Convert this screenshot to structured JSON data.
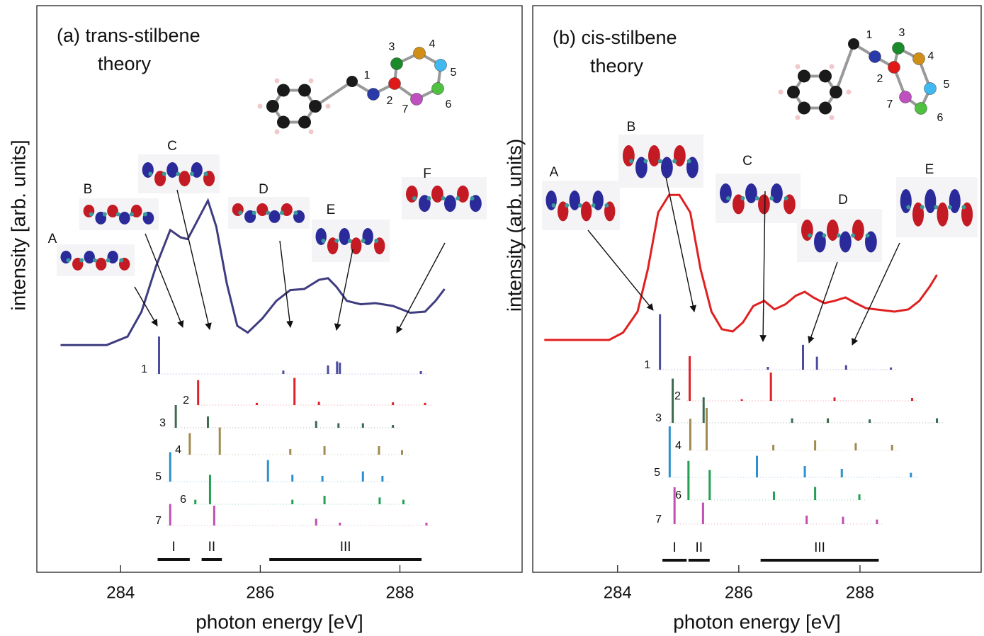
{
  "chart_data": [
    {
      "type": "spectrum",
      "title": "(a) trans-stilbene",
      "subtitle": "theory",
      "xlabel": "photon energy [eV]",
      "ylabel": "intensity [arb. units]",
      "xlim": [
        282.8,
        289.75
      ],
      "ylim": [
        0,
        1
      ],
      "xticks": [
        284,
        286,
        288
      ],
      "annotations": [
        "A",
        "B",
        "C",
        "D",
        "E",
        "F"
      ],
      "atom_labels": [
        "1",
        "2",
        "3",
        "4",
        "5",
        "6",
        "7"
      ],
      "regions": [
        {
          "label": "I",
          "range": [
            284.53,
            284.99
          ]
        },
        {
          "label": "II",
          "range": [
            285.16,
            285.45
          ]
        },
        {
          "label": "III",
          "range": [
            286.13,
            288.31
          ]
        }
      ],
      "curve": {
        "color": "#3f3c80",
        "x": [
          283.14,
          283.8,
          284.1,
          284.3,
          284.51,
          284.71,
          284.86,
          284.96,
          285.11,
          285.25,
          285.37,
          285.52,
          285.67,
          285.82,
          286.03,
          286.23,
          286.43,
          286.63,
          286.84,
          286.97,
          287.09,
          287.24,
          287.44,
          287.65,
          287.9,
          288.15,
          288.36,
          288.51,
          288.64
        ],
        "values": [
          0.401,
          0.401,
          0.416,
          0.46,
          0.541,
          0.604,
          0.591,
          0.588,
          0.623,
          0.656,
          0.61,
          0.51,
          0.435,
          0.423,
          0.448,
          0.479,
          0.498,
          0.5,
          0.516,
          0.519,
          0.504,
          0.479,
          0.473,
          0.475,
          0.47,
          0.458,
          0.46,
          0.479,
          0.5
        ]
      },
      "series": [
        {
          "name": "1",
          "color": "#4b4ba0",
          "x": [
            284.55,
            286.33,
            286.97,
            287.1,
            287.14,
            288.3
          ],
          "values": [
            0.066,
            0.006,
            0.015,
            0.022,
            0.02,
            0.005
          ]
        },
        {
          "name": "2",
          "color": "#e0202a",
          "x": [
            285.11,
            285.95,
            286.49,
            286.84,
            287.9,
            288.36
          ],
          "values": [
            0.044,
            0.004,
            0.048,
            0.006,
            0.005,
            0.004
          ]
        },
        {
          "name": "3",
          "color": "#3a6a50",
          "x": [
            284.79,
            285.25,
            286.8,
            287.12,
            287.47,
            287.9
          ],
          "values": [
            0.04,
            0.02,
            0.012,
            0.008,
            0.008,
            0.005
          ]
        },
        {
          "name": "4",
          "color": "#a08a50",
          "x": [
            284.99,
            285.42,
            286.43,
            286.92,
            287.7,
            288.03
          ],
          "values": [
            0.038,
            0.048,
            0.01,
            0.015,
            0.015,
            0.008
          ]
        },
        {
          "name": "5",
          "color": "#2a90d0",
          "x": [
            284.71,
            286.11,
            286.46,
            286.89,
            287.47,
            287.75
          ],
          "values": [
            0.052,
            0.038,
            0.012,
            0.01,
            0.018,
            0.01
          ]
        },
        {
          "name": "6",
          "color": "#20a050",
          "x": [
            285.07,
            285.28,
            286.46,
            286.92,
            287.71,
            288.05
          ],
          "values": [
            0.008,
            0.052,
            0.008,
            0.015,
            0.012,
            0.008
          ]
        },
        {
          "name": "7",
          "color": "#c050b0",
          "x": [
            284.71,
            285.34,
            286.8,
            287.14,
            288.38
          ],
          "values": [
            0.038,
            0.035,
            0.012,
            0.005,
            0.005
          ]
        }
      ]
    },
    {
      "type": "spectrum",
      "title": "(b) cis-stilbene",
      "subtitle": "theory",
      "xlabel": "photon energy [eV]",
      "ylabel": "intensity (arb. units)",
      "xlim": [
        282.6,
        290.0
      ],
      "ylim": [
        0,
        1
      ],
      "xticks": [
        284,
        286,
        288
      ],
      "annotations": [
        "A",
        "B",
        "C",
        "D",
        "E"
      ],
      "atom_labels": [
        "1",
        "2",
        "3",
        "4",
        "5",
        "6",
        "7"
      ],
      "regions": [
        {
          "label": "I",
          "range": [
            284.74,
            285.14
          ]
        },
        {
          "label": "II",
          "range": [
            285.17,
            285.52
          ]
        },
        {
          "label": "III",
          "range": [
            286.36,
            288.31
          ]
        }
      ],
      "curve": {
        "color": "#e02020",
        "x": [
          282.79,
          283.86,
          284.09,
          284.33,
          284.5,
          284.67,
          284.85,
          285.02,
          285.2,
          285.37,
          285.55,
          285.72,
          285.9,
          286.07,
          286.24,
          286.42,
          286.59,
          286.77,
          286.94,
          287.09,
          287.23,
          287.41,
          287.58,
          287.76,
          287.93,
          288.1,
          288.34,
          288.57,
          288.8,
          288.98,
          289.15,
          289.27
        ],
        "values": [
          0.41,
          0.41,
          0.423,
          0.46,
          0.535,
          0.635,
          0.666,
          0.666,
          0.635,
          0.535,
          0.46,
          0.429,
          0.425,
          0.441,
          0.47,
          0.479,
          0.464,
          0.473,
          0.488,
          0.495,
          0.485,
          0.475,
          0.479,
          0.485,
          0.475,
          0.466,
          0.463,
          0.46,
          0.464,
          0.479,
          0.504,
          0.525
        ]
      },
      "series": [
        {
          "name": "1",
          "color": "#4b4ba0",
          "x": [
            284.7,
            286.48,
            287.06,
            287.29,
            287.77,
            288.51
          ],
          "values": [
            0.098,
            0.005,
            0.044,
            0.023,
            0.008,
            0.004
          ]
        },
        {
          "name": "2",
          "color": "#e0202a",
          "x": [
            285.19,
            286.05,
            286.53,
            287.58,
            288.86
          ],
          "values": [
            0.079,
            0.003,
            0.05,
            0.006,
            0.005
          ]
        },
        {
          "name": "3",
          "color": "#3a6a50",
          "x": [
            284.91,
            285.42,
            286.88,
            287.47,
            288.16,
            289.27
          ],
          "values": [
            0.078,
            0.045,
            0.008,
            0.008,
            0.006,
            0.008
          ]
        },
        {
          "name": "4",
          "color": "#a08a50",
          "x": [
            285.2,
            285.47,
            286.57,
            287.26,
            287.93,
            288.53
          ],
          "values": [
            0.056,
            0.075,
            0.01,
            0.018,
            0.013,
            0.01
          ]
        },
        {
          "name": "5",
          "color": "#2a90d0",
          "x": [
            284.86,
            286.3,
            287.09,
            287.7,
            288.84
          ],
          "values": [
            0.09,
            0.038,
            0.02,
            0.015,
            0.008
          ]
        },
        {
          "name": "6",
          "color": "#20a050",
          "x": [
            285.17,
            285.52,
            286.58,
            287.26,
            287.99
          ],
          "values": [
            0.069,
            0.053,
            0.015,
            0.023,
            0.01
          ]
        },
        {
          "name": "7",
          "color": "#c050b0",
          "x": [
            284.94,
            285.41,
            287.12,
            287.72,
            288.28
          ],
          "values": [
            0.065,
            0.038,
            0.015,
            0.013,
            0.008
          ]
        }
      ]
    }
  ]
}
